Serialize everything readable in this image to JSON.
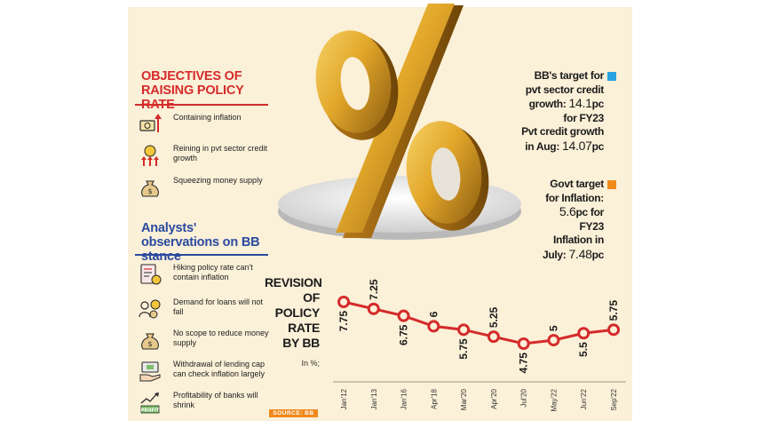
{
  "objectives": {
    "title": "OBJECTIVES OF RAISING POLICY RATE",
    "items": [
      {
        "icon": "money-up-icon",
        "text": "Containing inflation"
      },
      {
        "icon": "coin-arrows-icon",
        "text": "Reining in pvt sector credit growth"
      },
      {
        "icon": "money-bag-icon",
        "text": "Squeezing money supply"
      }
    ]
  },
  "analysts": {
    "title": "Analysts' observations on BB stance",
    "items": [
      {
        "icon": "document-chart-icon",
        "text": "Hiking policy rate can't contain inflation"
      },
      {
        "icon": "people-coin-icon",
        "text": "Demand for loans will not fall"
      },
      {
        "icon": "money-bag-icon",
        "text": "No scope to reduce money supply"
      },
      {
        "icon": "hand-money-icon",
        "text": "Withdrawal of lending cap can check inflation largely"
      },
      {
        "icon": "profit-chart-icon",
        "text": "Profitability of banks will shrink"
      }
    ]
  },
  "notes": {
    "credit": {
      "line1": "BB's target for",
      "line2": "pvt sector credit",
      "line3a": "growth: ",
      "line3b": "14.1",
      "line3c": "pc",
      "line4": "for FY23",
      "line5": "Pvt credit growth",
      "line6a": "in Aug: ",
      "line6b": "14.07",
      "line6c": "pc",
      "marker_color": "#29a3e0"
    },
    "inflation": {
      "line1": "Govt target",
      "line2": "for Inflation:",
      "line3a": "5.6",
      "line3b": "pc for",
      "line4": "FY23",
      "line5": "Inflation in",
      "line6a": "July: ",
      "line6b": "7.48",
      "line6c": "pc",
      "marker_color": "#f08a1c"
    }
  },
  "hero_symbol": "%",
  "chart": {
    "title_lines": [
      "REVISION",
      "OF",
      "POLICY",
      "RATE",
      "BY BB"
    ],
    "unit": "In %;",
    "source": "SOURCE: BB"
  },
  "chart_data": {
    "type": "line",
    "categories": [
      "Jan'12",
      "Jan'13",
      "Jan'16",
      "Apr'18",
      "Mar'20",
      "Apr'20",
      "Jul'20",
      "May'22",
      "Jun'22",
      "Sep'22"
    ],
    "series": [
      {
        "values": [
          7.75,
          7.25,
          6.75,
          6,
          5.75,
          5.25,
          4.75,
          5,
          5.5,
          5.75
        ]
      }
    ],
    "data_labels": [
      "7.75",
      "7.25",
      "6.75",
      "6",
      "5.75",
      "5.25",
      "4.75",
      "5",
      "5.5",
      "5.75"
    ],
    "line_color": "#d42b2b"
  }
}
